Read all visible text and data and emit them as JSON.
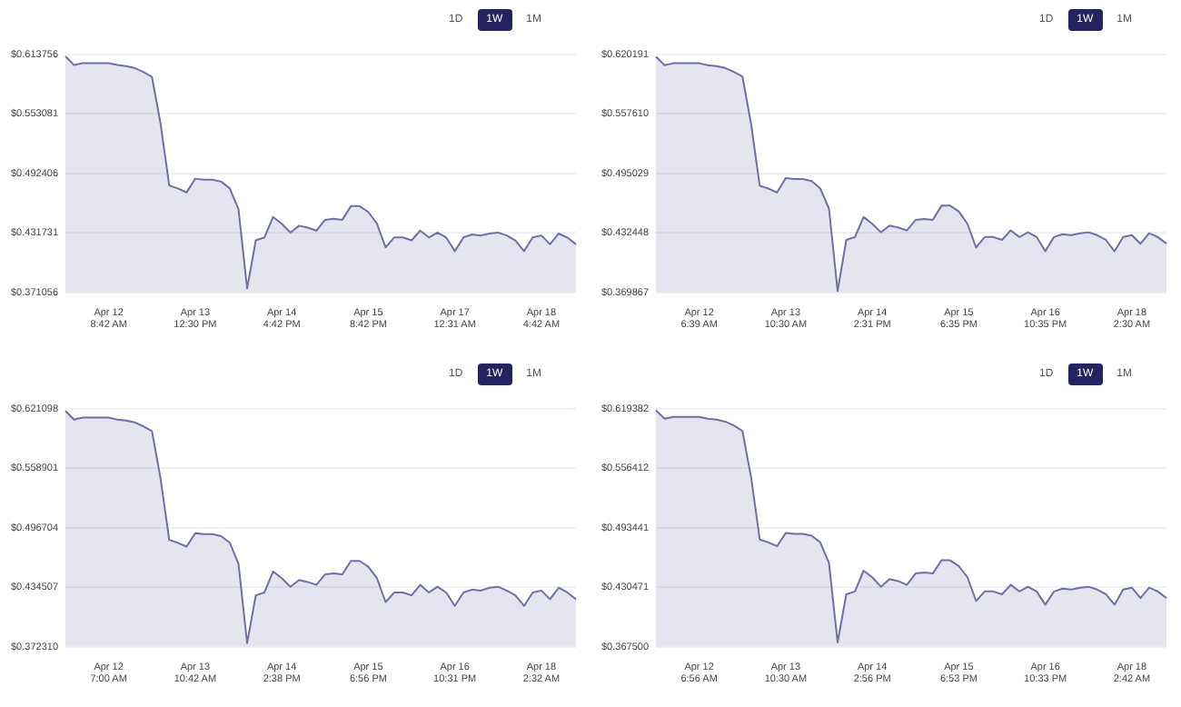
{
  "chart_data": [
    {
      "type": "area",
      "grid": "y",
      "legend": false,
      "marker": "none",
      "annotations": [
        "1D",
        "1W",
        "1M"
      ],
      "categories": [
        null,
        null,
        null,
        null,
        null,
        "Apr 12\n8:42 AM",
        null,
        null,
        null,
        null,
        null,
        null,
        null,
        null,
        null,
        "Apr 13\n12:30 PM",
        null,
        null,
        null,
        null,
        null,
        null,
        null,
        null,
        null,
        "Apr 14\n4:42 PM",
        null,
        null,
        null,
        null,
        null,
        null,
        null,
        null,
        null,
        "Apr 15\n8:42 PM",
        null,
        null,
        null,
        null,
        null,
        null,
        null,
        null,
        null,
        "Apr 17\n12:31 AM",
        null,
        null,
        null,
        null,
        null,
        null,
        null,
        null,
        null,
        "Apr 18\n4:42 AM",
        null,
        null,
        null,
        null
      ],
      "ylim": [
        0.371056,
        0.613756
      ],
      "yticks": [
        {
          "value": 0.371056,
          "label": "$0.371056"
        },
        {
          "value": 0.431731,
          "label": "$0.431731"
        },
        {
          "value": 0.492406,
          "label": "$0.492406"
        },
        {
          "value": 0.553081,
          "label": "$0.553081"
        },
        {
          "value": 0.613756,
          "label": "$0.613756"
        }
      ],
      "series": [
        {
          "color": "#6f6fa8",
          "values": [
            0.612,
            0.603,
            0.605,
            0.605,
            0.605,
            0.605,
            0.603,
            0.602,
            0.6,
            0.596,
            0.591,
            0.543,
            0.48,
            0.477,
            0.473,
            0.487,
            0.486,
            0.486,
            0.484,
            0.477,
            0.456,
            0.375,
            0.424,
            0.427,
            0.448,
            0.441,
            0.432,
            0.439,
            0.437,
            0.434,
            0.445,
            0.446,
            0.445,
            0.459,
            0.459,
            0.453,
            0.441,
            0.417,
            0.427,
            0.427,
            0.424,
            0.434,
            0.427,
            0.432,
            0.427,
            0.413,
            0.427,
            0.43,
            0.429,
            0.431,
            0.432,
            0.429,
            0.424,
            0.413,
            0.427,
            0.429,
            0.42,
            0.431,
            0.427,
            0.42
          ]
        }
      ]
    },
    {
      "type": "area",
      "grid": "y",
      "legend": false,
      "marker": "none",
      "annotations": [
        "1D",
        "1W",
        "1M"
      ],
      "categories": [
        null,
        null,
        null,
        null,
        null,
        "Apr 12\n6:39 AM",
        null,
        null,
        null,
        null,
        null,
        null,
        null,
        null,
        null,
        "Apr 13\n10:30 AM",
        null,
        null,
        null,
        null,
        null,
        null,
        null,
        null,
        null,
        "Apr 14\n2:31 PM",
        null,
        null,
        null,
        null,
        null,
        null,
        null,
        null,
        null,
        "Apr 15\n6:35 PM",
        null,
        null,
        null,
        null,
        null,
        null,
        null,
        null,
        null,
        "Apr 16\n10:35 PM",
        null,
        null,
        null,
        null,
        null,
        null,
        null,
        null,
        null,
        "Apr 18\n2:30 AM",
        null,
        null,
        null,
        null
      ],
      "ylim": [
        0.369867,
        0.620191
      ],
      "yticks": [
        {
          "value": 0.369867,
          "label": "$0.369867"
        },
        {
          "value": 0.432448,
          "label": "$0.432448"
        },
        {
          "value": 0.495029,
          "label": "$0.495029"
        },
        {
          "value": 0.55761,
          "label": "$0.557610"
        },
        {
          "value": 0.620191,
          "label": "$0.620191"
        }
      ],
      "series": [
        {
          "color": "#6f6fa8",
          "values": [
            0.618,
            0.609,
            0.611,
            0.611,
            0.611,
            0.611,
            0.609,
            0.608,
            0.606,
            0.602,
            0.597,
            0.547,
            0.482,
            0.479,
            0.475,
            0.49,
            0.489,
            0.489,
            0.487,
            0.479,
            0.458,
            0.371,
            0.425,
            0.428,
            0.449,
            0.442,
            0.433,
            0.44,
            0.438,
            0.435,
            0.446,
            0.447,
            0.446,
            0.461,
            0.461,
            0.455,
            0.442,
            0.417,
            0.428,
            0.428,
            0.425,
            0.435,
            0.428,
            0.433,
            0.428,
            0.413,
            0.428,
            0.431,
            0.43,
            0.432,
            0.433,
            0.43,
            0.425,
            0.413,
            0.428,
            0.43,
            0.421,
            0.432,
            0.428,
            0.421
          ]
        }
      ]
    },
    {
      "type": "area",
      "grid": "y",
      "legend": false,
      "marker": "none",
      "annotations": [
        "1D",
        "1W",
        "1M"
      ],
      "categories": [
        null,
        null,
        null,
        null,
        null,
        "Apr 12\n7:00 AM",
        null,
        null,
        null,
        null,
        null,
        null,
        null,
        null,
        null,
        "Apr 13\n10:42 AM",
        null,
        null,
        null,
        null,
        null,
        null,
        null,
        null,
        null,
        "Apr 14\n2:38 PM",
        null,
        null,
        null,
        null,
        null,
        null,
        null,
        null,
        null,
        "Apr 15\n6:56 PM",
        null,
        null,
        null,
        null,
        null,
        null,
        null,
        null,
        null,
        "Apr 16\n10:31 PM",
        null,
        null,
        null,
        null,
        null,
        null,
        null,
        null,
        null,
        "Apr 18\n2:32 AM",
        null,
        null,
        null,
        null
      ],
      "ylim": [
        0.37231,
        0.621098
      ],
      "yticks": [
        {
          "value": 0.37231,
          "label": "$0.372310"
        },
        {
          "value": 0.434507,
          "label": "$0.434507"
        },
        {
          "value": 0.496704,
          "label": "$0.496704"
        },
        {
          "value": 0.558901,
          "label": "$0.558901"
        },
        {
          "value": 0.621098,
          "label": "$0.621098"
        }
      ],
      "series": [
        {
          "color": "#6f6fa8",
          "values": [
            0.619,
            0.61,
            0.612,
            0.612,
            0.612,
            0.612,
            0.61,
            0.609,
            0.607,
            0.603,
            0.598,
            0.548,
            0.484,
            0.481,
            0.477,
            0.491,
            0.49,
            0.49,
            0.488,
            0.481,
            0.459,
            0.376,
            0.426,
            0.429,
            0.451,
            0.444,
            0.435,
            0.442,
            0.44,
            0.437,
            0.448,
            0.449,
            0.448,
            0.462,
            0.462,
            0.456,
            0.444,
            0.419,
            0.429,
            0.429,
            0.426,
            0.437,
            0.429,
            0.435,
            0.429,
            0.415,
            0.429,
            0.432,
            0.431,
            0.434,
            0.435,
            0.431,
            0.426,
            0.415,
            0.429,
            0.431,
            0.422,
            0.434,
            0.429,
            0.422
          ]
        }
      ]
    },
    {
      "type": "area",
      "grid": "y",
      "legend": false,
      "marker": "none",
      "annotations": [
        "1D",
        "1W",
        "1M"
      ],
      "categories": [
        null,
        null,
        null,
        null,
        null,
        "Apr 12\n6:56 AM",
        null,
        null,
        null,
        null,
        null,
        null,
        null,
        null,
        null,
        "Apr 13\n10:30 AM",
        null,
        null,
        null,
        null,
        null,
        null,
        null,
        null,
        null,
        "Apr 14\n2:56 PM",
        null,
        null,
        null,
        null,
        null,
        null,
        null,
        null,
        null,
        "Apr 15\n6:53 PM",
        null,
        null,
        null,
        null,
        null,
        null,
        null,
        null,
        null,
        "Apr 16\n10:33 PM",
        null,
        null,
        null,
        null,
        null,
        null,
        null,
        null,
        null,
        "Apr 18\n2:42 AM",
        null,
        null,
        null,
        null
      ],
      "ylim": [
        0.3675,
        0.619382
      ],
      "yticks": [
        {
          "value": 0.3675,
          "label": "$0.367500"
        },
        {
          "value": 0.430471,
          "label": "$0.430471"
        },
        {
          "value": 0.493441,
          "label": "$0.493441"
        },
        {
          "value": 0.556412,
          "label": "$0.556412"
        },
        {
          "value": 0.619382,
          "label": "$0.619382"
        }
      ],
      "series": [
        {
          "color": "#6f6fa8",
          "values": [
            0.618,
            0.609,
            0.611,
            0.611,
            0.611,
            0.611,
            0.609,
            0.608,
            0.606,
            0.602,
            0.596,
            0.547,
            0.481,
            0.478,
            0.474,
            0.488,
            0.487,
            0.487,
            0.485,
            0.478,
            0.456,
            0.372,
            0.423,
            0.426,
            0.448,
            0.441,
            0.431,
            0.439,
            0.437,
            0.433,
            0.445,
            0.446,
            0.445,
            0.459,
            0.459,
            0.453,
            0.441,
            0.416,
            0.426,
            0.426,
            0.423,
            0.433,
            0.426,
            0.431,
            0.426,
            0.412,
            0.426,
            0.429,
            0.428,
            0.43,
            0.431,
            0.428,
            0.423,
            0.412,
            0.428,
            0.43,
            0.419,
            0.43,
            0.426,
            0.419
          ]
        }
      ]
    }
  ]
}
